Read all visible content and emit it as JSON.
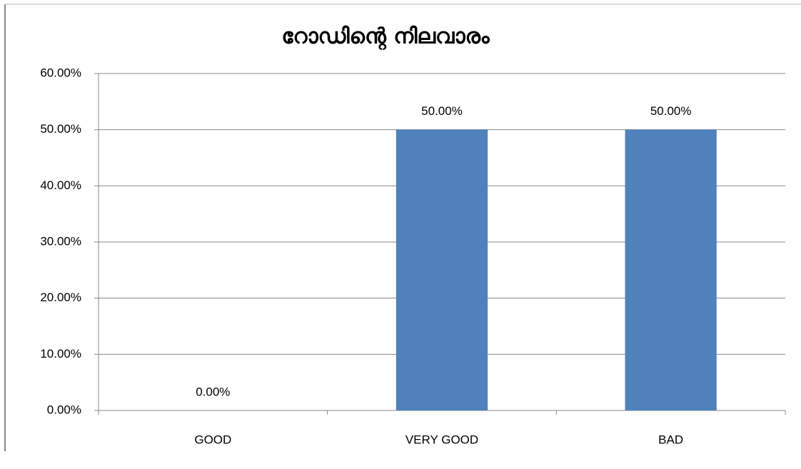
{
  "chart_data": {
    "type": "bar",
    "title": "റോഡിന്റെ നിലവാരം",
    "categories": [
      "GOOD",
      "VERY GOOD",
      "BAD"
    ],
    "values": [
      0,
      50,
      50
    ],
    "value_labels": [
      "0.00%",
      "50.00%",
      "50.00%"
    ],
    "color": "#4f81bd",
    "ylim": [
      0,
      60
    ],
    "yticks": [
      {
        "value": 0,
        "label": "0.00%"
      },
      {
        "value": 10,
        "label": "10.00%"
      },
      {
        "value": 20,
        "label": "20.00%"
      },
      {
        "value": 30,
        "label": "30.00%"
      },
      {
        "value": 40,
        "label": "40.00%"
      },
      {
        "value": 50,
        "label": "50.00%"
      },
      {
        "value": 60,
        "label": "60.00%"
      }
    ],
    "grid": true
  }
}
